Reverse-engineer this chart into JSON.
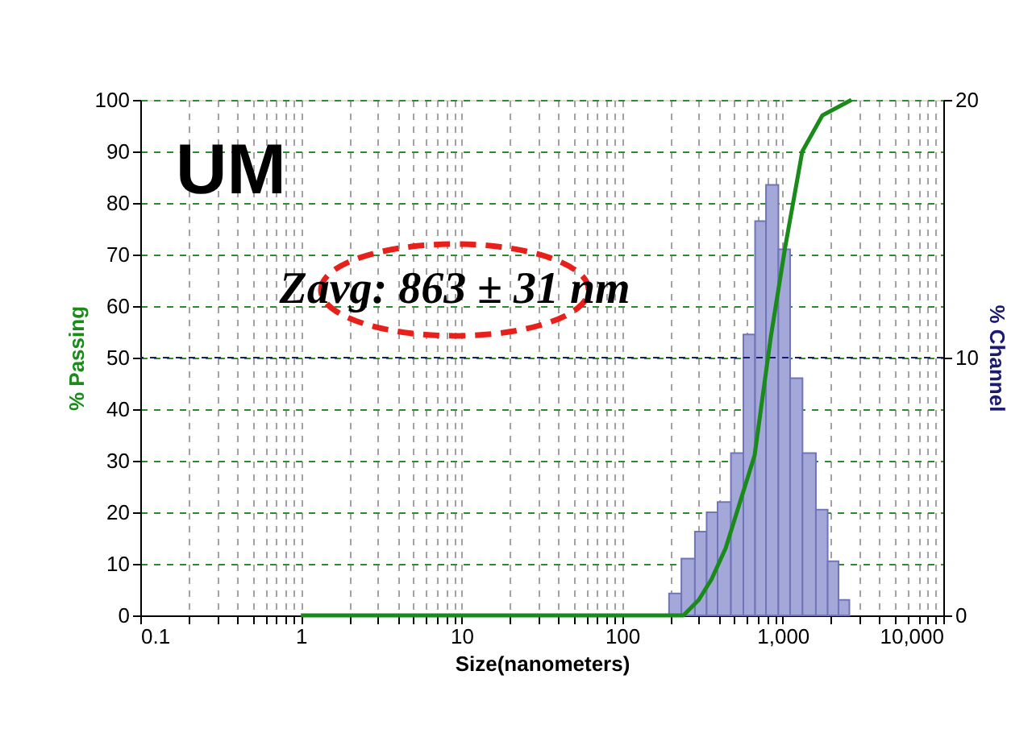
{
  "chart_data": {
    "type": "histogram",
    "xlabel": "Size(nanometers)",
    "ylabel": "% Passing",
    "y2label": "% Channel",
    "annotations": [
      "UM",
      "Zavg: 863 ± 31 nm"
    ],
    "log": "x",
    "grid": true,
    "ref_lines": [
      {
        "axis": "y2",
        "value": 10,
        "color": "#1a1a70",
        "line_style": "dashed"
      }
    ],
    "xlim": [
      0.1,
      10000
    ],
    "xticks": [
      0.1,
      {
        "value": 0.2,
        "label": null
      },
      {
        "value": 0.3,
        "label": null
      },
      {
        "value": 0.4,
        "label": null
      },
      {
        "value": 0.5,
        "label": null
      },
      {
        "value": 0.6,
        "label": null
      },
      {
        "value": 0.7,
        "label": null
      },
      {
        "value": 0.8,
        "label": null
      },
      {
        "value": 0.9,
        "label": null
      },
      1,
      {
        "value": 2,
        "label": null
      },
      {
        "value": 3,
        "label": null
      },
      {
        "value": 4,
        "label": null
      },
      {
        "value": 5,
        "label": null
      },
      {
        "value": 6,
        "label": null
      },
      {
        "value": 7,
        "label": null
      },
      {
        "value": 8,
        "label": null
      },
      {
        "value": 9,
        "label": null
      },
      10,
      {
        "value": 20,
        "label": null
      },
      {
        "value": 30,
        "label": null
      },
      {
        "value": 40,
        "label": null
      },
      {
        "value": 50,
        "label": null
      },
      {
        "value": 60,
        "label": null
      },
      {
        "value": 70,
        "label": null
      },
      {
        "value": 80,
        "label": null
      },
      {
        "value": 90,
        "label": null
      },
      100,
      {
        "value": 200,
        "label": null
      },
      {
        "value": 300,
        "label": null
      },
      {
        "value": 400,
        "label": null
      },
      {
        "value": 500,
        "label": null
      },
      {
        "value": 600,
        "label": null
      },
      {
        "value": 700,
        "label": null
      },
      {
        "value": 800,
        "label": null
      },
      {
        "value": 900,
        "label": null
      },
      {
        "value": 1000,
        "label": "1,000"
      },
      {
        "value": 2000,
        "label": null
      },
      {
        "value": 3000,
        "label": null
      },
      {
        "value": 4000,
        "label": null
      },
      {
        "value": 5000,
        "label": null
      },
      {
        "value": 6000,
        "label": null
      },
      {
        "value": 7000,
        "label": null
      },
      {
        "value": 8000,
        "label": null
      },
      {
        "value": 9000,
        "label": null
      },
      {
        "value": 10000,
        "label": "10,000"
      }
    ],
    "ylim": [
      0,
      100
    ],
    "yticks": [
      0,
      10,
      20,
      30,
      40,
      50,
      60,
      70,
      80,
      90,
      100
    ],
    "y2lim": [
      0,
      20
    ],
    "y2ticks": [
      0,
      10,
      20
    ],
    "series": [
      {
        "axis": "y2",
        "color": "#a4a8d8",
        "bins": [
          196,
          234,
          284,
          336,
          393,
          476,
          569,
          673,
          787,
          940,
          1112,
          1328,
          1609,
          1905,
          2225,
          2600
        ],
        "values": [
          0.85,
          2.2,
          3.25,
          4.0,
          4.4,
          6.3,
          10.9,
          15.3,
          16.7,
          14.2,
          9.2,
          6.3,
          4.1,
          2.1,
          0.6
        ]
      },
      {
        "type": "line",
        "color": "#1a8a1a",
        "x": [
          1,
          100,
          241,
          300,
          360,
          441,
          668,
          843,
          1037,
          1324,
          1766,
          2680
        ],
        "values": [
          0,
          0,
          0,
          3,
          7,
          13,
          31,
          54,
          71.5,
          90,
          97,
          100
        ]
      }
    ]
  }
}
